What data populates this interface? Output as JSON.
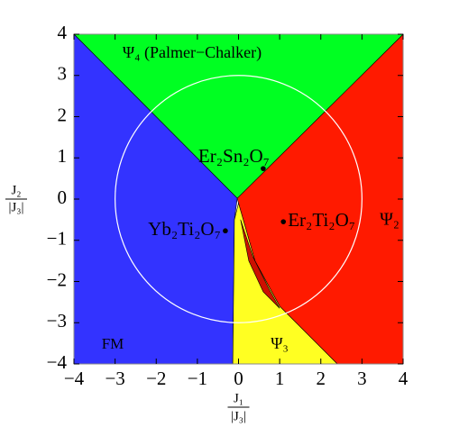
{
  "chart_data": {
    "type": "phase",
    "x_label": {
      "numerator": "J₁",
      "denominator": "|J₃|"
    },
    "y_label": {
      "numerator": "J₂",
      "denominator": "|J₃|"
    },
    "xlim": [
      -4,
      4
    ],
    "ylim": [
      -4,
      4
    ],
    "xticks": [
      {
        "value": -4,
        "label": "−4"
      },
      {
        "value": -3,
        "label": "−3"
      },
      {
        "value": -2,
        "label": "−2"
      },
      {
        "value": -1,
        "label": "−1"
      },
      0,
      1,
      2,
      3,
      4
    ],
    "yticks": [
      {
        "value": -4,
        "label": "−4"
      },
      {
        "value": -3,
        "label": "−3"
      },
      {
        "value": -2,
        "label": "−2"
      },
      {
        "value": -1,
        "label": "−1"
      },
      0,
      1,
      2,
      3,
      4
    ],
    "regions": [
      {
        "name": "Ψ₂",
        "color": "#ff1a00",
        "x": [
          -0.03,
          4,
          4,
          2.4,
          1.0,
          0.4,
          0.0
        ],
        "y": [
          0.02,
          4,
          -4,
          -4,
          -2.6,
          -1.5,
          -0.1
        ]
      },
      {
        "name": "Ψ₄ (Palmer−Chalker)",
        "color": "#00ff22",
        "x": [
          -4,
          4,
          -0.03
        ],
        "y": [
          4,
          4,
          0.02
        ]
      },
      {
        "name": "FM",
        "color": "#3333ff",
        "x": [
          -4,
          -0.03,
          -0.1,
          -0.14,
          -4
        ],
        "y": [
          4,
          0.02,
          -0.5,
          -4,
          -4
        ]
      },
      {
        "name": "Ψ₃",
        "color": "#ffff22",
        "x": [
          0.0,
          0.4,
          1.0,
          2.4,
          -0.14,
          -0.1
        ],
        "y": [
          -0.1,
          -1.5,
          -2.6,
          -4,
          -4,
          -0.5
        ]
      },
      {
        "color": "#cc1100",
        "x": [
          0.05,
          0.35,
          0.75,
          1.0,
          0.6,
          0.25
        ],
        "y": [
          -0.5,
          -1.4,
          -2.2,
          -2.65,
          -2.25,
          -1.5
        ]
      }
    ],
    "circle_radius": 3,
    "points": [
      {
        "label": "Er₂Sn₂O₇",
        "x": 0.6,
        "y": 0.74
      },
      {
        "label": "Er₂Ti₂O₇",
        "x": 1.09,
        "y": -0.55
      },
      {
        "label": "Yb₂Ti₂O₇",
        "x": -0.32,
        "y": -0.77
      }
    ]
  }
}
